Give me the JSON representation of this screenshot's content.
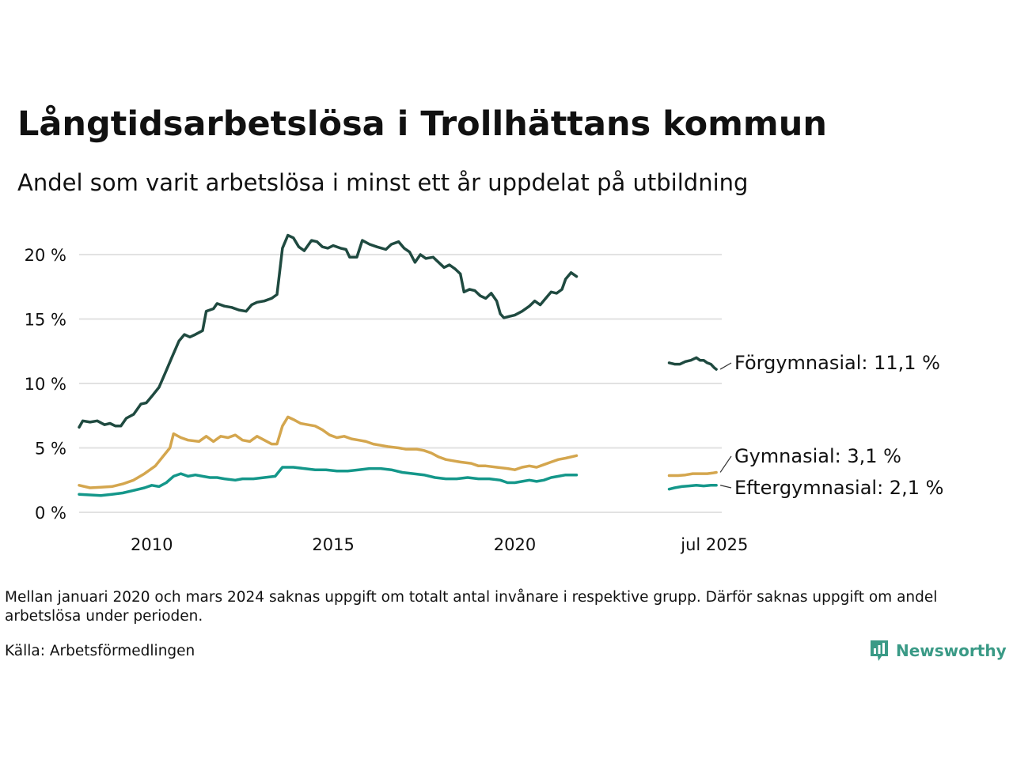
{
  "title": "Långtidsarbetslösa i Trollhättans kommun",
  "subtitle": "Andel som varit arbetslösa i minst ett år uppdelat på utbildning",
  "footnote": "Mellan januari 2020 och mars 2024 saknas uppgift om totalt antal invånare i respektive grupp. Därför saknas uppgift om andel arbetslösa under perioden.",
  "source": "Källa: Arbetsförmedlingen",
  "logo_text": "Newsworthy",
  "colors": {
    "forgymnasial": "#1f4a40",
    "gymnasial": "#d4a64e",
    "eftergymnasial": "#14978a",
    "grid": "#e2e2e2",
    "logo": "#3a9a86"
  },
  "chart_data": {
    "type": "line",
    "title": "Långtidsarbetslösa i Trollhättans kommun",
    "subtitle": "Andel som varit arbetslösa i minst ett år uppdelat på utbildning",
    "ylabel": "",
    "xlabel": "",
    "ylim": [
      0,
      22
    ],
    "yticks": [
      0,
      5,
      10,
      15,
      20
    ],
    "ytick_labels": [
      "0 %",
      "5 %",
      "10 %",
      "15 %",
      "20 %"
    ],
    "xticks": [
      2010,
      2015,
      2020,
      2025.5
    ],
    "xtick_labels": [
      "2010",
      "2015",
      "2020",
      "jul 2025"
    ],
    "grid": true,
    "series": [
      {
        "name": "Förgymnasial",
        "color_key": "forgymnasial",
        "end_label": "Förgymnasial: 11,1 %",
        "segments": [
          [
            [
              2008.0,
              6.6
            ],
            [
              2008.1,
              7.1
            ],
            [
              2008.3,
              7.0
            ],
            [
              2008.5,
              7.1
            ],
            [
              2008.7,
              6.8
            ],
            [
              2008.85,
              6.9
            ],
            [
              2009.0,
              6.7
            ],
            [
              2009.15,
              6.7
            ],
            [
              2009.3,
              7.3
            ],
            [
              2009.5,
              7.6
            ],
            [
              2009.7,
              8.4
            ],
            [
              2009.85,
              8.5
            ],
            [
              2010.0,
              9.0
            ],
            [
              2010.2,
              9.7
            ],
            [
              2010.4,
              11.0
            ],
            [
              2010.55,
              12.0
            ],
            [
              2010.75,
              13.3
            ],
            [
              2010.9,
              13.8
            ],
            [
              2011.05,
              13.6
            ],
            [
              2011.2,
              13.8
            ],
            [
              2011.4,
              14.1
            ],
            [
              2011.5,
              15.6
            ],
            [
              2011.7,
              15.8
            ],
            [
              2011.8,
              16.2
            ],
            [
              2012.0,
              16.0
            ],
            [
              2012.2,
              15.9
            ],
            [
              2012.4,
              15.7
            ],
            [
              2012.6,
              15.6
            ],
            [
              2012.75,
              16.1
            ],
            [
              2012.9,
              16.3
            ],
            [
              2013.1,
              16.4
            ],
            [
              2013.3,
              16.6
            ],
            [
              2013.45,
              16.9
            ],
            [
              2013.6,
              20.5
            ],
            [
              2013.75,
              21.5
            ],
            [
              2013.9,
              21.3
            ],
            [
              2014.05,
              20.6
            ],
            [
              2014.2,
              20.3
            ],
            [
              2014.4,
              21.1
            ],
            [
              2014.55,
              21.0
            ],
            [
              2014.7,
              20.6
            ],
            [
              2014.85,
              20.5
            ],
            [
              2015.0,
              20.7
            ],
            [
              2015.2,
              20.5
            ],
            [
              2015.35,
              20.4
            ],
            [
              2015.45,
              19.8
            ],
            [
              2015.65,
              19.8
            ],
            [
              2015.8,
              21.1
            ],
            [
              2016.0,
              20.8
            ],
            [
              2016.2,
              20.6
            ],
            [
              2016.45,
              20.4
            ],
            [
              2016.6,
              20.8
            ],
            [
              2016.8,
              21.0
            ],
            [
              2016.95,
              20.5
            ],
            [
              2017.1,
              20.2
            ],
            [
              2017.25,
              19.4
            ],
            [
              2017.4,
              20.0
            ],
            [
              2017.55,
              19.7
            ],
            [
              2017.75,
              19.8
            ],
            [
              2017.9,
              19.4
            ],
            [
              2018.05,
              19.0
            ],
            [
              2018.2,
              19.2
            ],
            [
              2018.35,
              18.9
            ],
            [
              2018.5,
              18.5
            ],
            [
              2018.6,
              17.1
            ],
            [
              2018.75,
              17.3
            ],
            [
              2018.9,
              17.2
            ],
            [
              2019.05,
              16.8
            ],
            [
              2019.2,
              16.6
            ],
            [
              2019.35,
              17.0
            ],
            [
              2019.5,
              16.4
            ],
            [
              2019.6,
              15.4
            ],
            [
              2019.7,
              15.1
            ],
            [
              2019.85,
              15.2
            ],
            [
              2020.0,
              15.3
            ],
            [
              2020.2,
              15.6
            ],
            [
              2020.4,
              16.0
            ],
            [
              2020.55,
              16.4
            ],
            [
              2020.7,
              16.1
            ],
            [
              2020.85,
              16.6
            ],
            [
              2021.0,
              17.1
            ],
            [
              2021.15,
              17.0
            ],
            [
              2021.3,
              17.3
            ],
            [
              2021.4,
              18.1
            ],
            [
              2021.55,
              18.6
            ],
            [
              2021.7,
              18.3
            ]
          ],
          [
            [
              2024.25,
              11.6
            ],
            [
              2024.4,
              11.5
            ],
            [
              2024.55,
              11.5
            ],
            [
              2024.7,
              11.7
            ],
            [
              2024.85,
              11.8
            ],
            [
              2025.0,
              12.0
            ],
            [
              2025.1,
              11.8
            ],
            [
              2025.2,
              11.8
            ],
            [
              2025.3,
              11.6
            ],
            [
              2025.4,
              11.5
            ],
            [
              2025.5,
              11.2
            ],
            [
              2025.55,
              11.1
            ]
          ]
        ]
      },
      {
        "name": "Gymnasial",
        "color_key": "gymnasial",
        "end_label": "Gymnasial:  3,1 %",
        "segments": [
          [
            [
              2008.0,
              2.1
            ],
            [
              2008.3,
              1.9
            ],
            [
              2008.6,
              1.95
            ],
            [
              2008.9,
              2.0
            ],
            [
              2009.2,
              2.2
            ],
            [
              2009.5,
              2.5
            ],
            [
              2009.8,
              3.0
            ],
            [
              2010.1,
              3.6
            ],
            [
              2010.3,
              4.3
            ],
            [
              2010.5,
              5.0
            ],
            [
              2010.6,
              6.1
            ],
            [
              2010.8,
              5.8
            ],
            [
              2011.0,
              5.6
            ],
            [
              2011.3,
              5.5
            ],
            [
              2011.5,
              5.9
            ],
            [
              2011.7,
              5.5
            ],
            [
              2011.9,
              5.9
            ],
            [
              2012.1,
              5.8
            ],
            [
              2012.3,
              6.0
            ],
            [
              2012.5,
              5.6
            ],
            [
              2012.7,
              5.5
            ],
            [
              2012.9,
              5.9
            ],
            [
              2013.1,
              5.6
            ],
            [
              2013.3,
              5.3
            ],
            [
              2013.45,
              5.3
            ],
            [
              2013.6,
              6.7
            ],
            [
              2013.75,
              7.4
            ],
            [
              2013.9,
              7.2
            ],
            [
              2014.1,
              6.9
            ],
            [
              2014.3,
              6.8
            ],
            [
              2014.5,
              6.7
            ],
            [
              2014.7,
              6.4
            ],
            [
              2014.9,
              6.0
            ],
            [
              2015.1,
              5.8
            ],
            [
              2015.3,
              5.9
            ],
            [
              2015.5,
              5.7
            ],
            [
              2015.7,
              5.6
            ],
            [
              2015.9,
              5.5
            ],
            [
              2016.1,
              5.3
            ],
            [
              2016.3,
              5.2
            ],
            [
              2016.5,
              5.1
            ],
            [
              2016.8,
              5.0
            ],
            [
              2017.0,
              4.9
            ],
            [
              2017.3,
              4.9
            ],
            [
              2017.5,
              4.8
            ],
            [
              2017.7,
              4.6
            ],
            [
              2017.9,
              4.3
            ],
            [
              2018.1,
              4.1
            ],
            [
              2018.3,
              4.0
            ],
            [
              2018.5,
              3.9
            ],
            [
              2018.8,
              3.8
            ],
            [
              2019.0,
              3.6
            ],
            [
              2019.2,
              3.6
            ],
            [
              2019.5,
              3.5
            ],
            [
              2019.8,
              3.4
            ],
            [
              2020.0,
              3.3
            ],
            [
              2020.2,
              3.5
            ],
            [
              2020.4,
              3.6
            ],
            [
              2020.6,
              3.5
            ],
            [
              2020.8,
              3.7
            ],
            [
              2021.0,
              3.9
            ],
            [
              2021.2,
              4.1
            ],
            [
              2021.4,
              4.2
            ],
            [
              2021.7,
              4.4
            ]
          ],
          [
            [
              2024.25,
              2.85
            ],
            [
              2024.5,
              2.85
            ],
            [
              2024.7,
              2.9
            ],
            [
              2024.9,
              3.0
            ],
            [
              2025.1,
              3.0
            ],
            [
              2025.3,
              3.0
            ],
            [
              2025.45,
              3.05
            ],
            [
              2025.55,
              3.1
            ]
          ]
        ]
      },
      {
        "name": "Eftergymnasial",
        "color_key": "eftergymnasial",
        "end_label": "Eftergymnasial:  2,1 %",
        "segments": [
          [
            [
              2008.0,
              1.4
            ],
            [
              2008.3,
              1.35
            ],
            [
              2008.6,
              1.3
            ],
            [
              2008.9,
              1.4
            ],
            [
              2009.2,
              1.5
            ],
            [
              2009.5,
              1.7
            ],
            [
              2009.8,
              1.9
            ],
            [
              2010.0,
              2.1
            ],
            [
              2010.2,
              2.0
            ],
            [
              2010.4,
              2.3
            ],
            [
              2010.6,
              2.8
            ],
            [
              2010.8,
              3.0
            ],
            [
              2011.0,
              2.8
            ],
            [
              2011.2,
              2.9
            ],
            [
              2011.4,
              2.8
            ],
            [
              2011.6,
              2.7
            ],
            [
              2011.8,
              2.7
            ],
            [
              2012.0,
              2.6
            ],
            [
              2012.3,
              2.5
            ],
            [
              2012.5,
              2.6
            ],
            [
              2012.8,
              2.6
            ],
            [
              2013.1,
              2.7
            ],
            [
              2013.4,
              2.8
            ],
            [
              2013.6,
              3.5
            ],
            [
              2013.9,
              3.5
            ],
            [
              2014.2,
              3.4
            ],
            [
              2014.5,
              3.3
            ],
            [
              2014.8,
              3.3
            ],
            [
              2015.1,
              3.2
            ],
            [
              2015.4,
              3.2
            ],
            [
              2015.7,
              3.3
            ],
            [
              2016.0,
              3.4
            ],
            [
              2016.3,
              3.4
            ],
            [
              2016.6,
              3.3
            ],
            [
              2016.9,
              3.1
            ],
            [
              2017.2,
              3.0
            ],
            [
              2017.5,
              2.9
            ],
            [
              2017.8,
              2.7
            ],
            [
              2018.1,
              2.6
            ],
            [
              2018.4,
              2.6
            ],
            [
              2018.7,
              2.7
            ],
            [
              2019.0,
              2.6
            ],
            [
              2019.3,
              2.6
            ],
            [
              2019.6,
              2.5
            ],
            [
              2019.8,
              2.3
            ],
            [
              2020.0,
              2.3
            ],
            [
              2020.2,
              2.4
            ],
            [
              2020.4,
              2.5
            ],
            [
              2020.6,
              2.4
            ],
            [
              2020.8,
              2.5
            ],
            [
              2021.0,
              2.7
            ],
            [
              2021.2,
              2.8
            ],
            [
              2021.4,
              2.9
            ],
            [
              2021.7,
              2.9
            ]
          ],
          [
            [
              2024.25,
              1.8
            ],
            [
              2024.4,
              1.9
            ],
            [
              2024.6,
              2.0
            ],
            [
              2024.8,
              2.05
            ],
            [
              2025.0,
              2.1
            ],
            [
              2025.2,
              2.05
            ],
            [
              2025.4,
              2.1
            ],
            [
              2025.55,
              2.1
            ]
          ]
        ]
      }
    ]
  }
}
